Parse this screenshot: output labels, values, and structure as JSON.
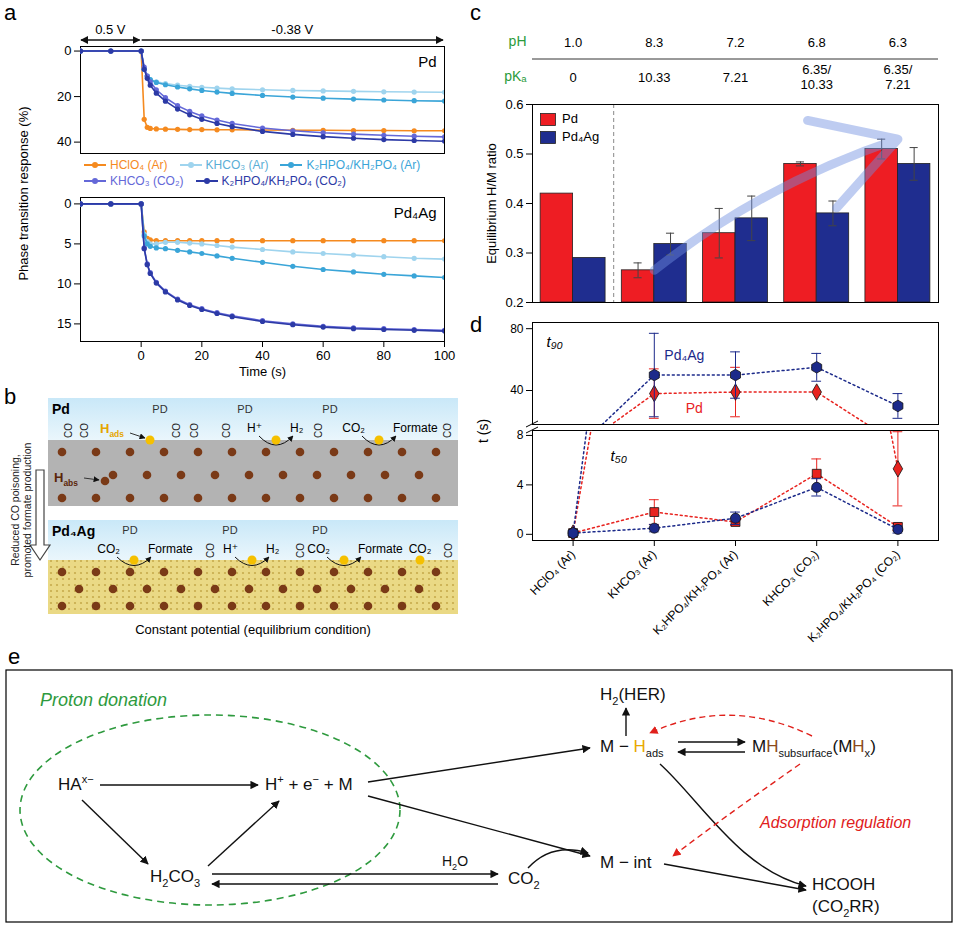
{
  "chart_data": [
    {
      "panel": "a",
      "type": "line",
      "xlabel": "Time (s)",
      "ylabel": "Phase transition response (%)",
      "xlim": [
        -20,
        100
      ],
      "xticks": [
        0,
        20,
        40,
        60,
        80,
        100
      ],
      "x": [
        -20,
        -10,
        0,
        1,
        2,
        3,
        5,
        8,
        12,
        16,
        20,
        25,
        30,
        40,
        50,
        60,
        70,
        80,
        90,
        100
      ],
      "marker": "circle",
      "legend": "middle",
      "potential_steps": [
        {
          "label": "0.5 V",
          "from": -20,
          "to": 0
        },
        {
          "label": "-0.38 V",
          "from": 0,
          "to": 100
        }
      ],
      "panels": [
        {
          "title": "Pd",
          "ylim": [
            45,
            -2
          ],
          "yticks": [
            0,
            20,
            40
          ],
          "series": [
            {
              "name": "HClO₄ (Ar)",
              "color": "#f58a1f",
              "values": [
                0,
                0,
                0,
                30,
                33.5,
                34,
                34.2,
                34.3,
                34.4,
                34.5,
                34.5,
                34.6,
                34.6,
                34.7,
                34.8,
                34.8,
                34.9,
                34.9,
                35,
                35
              ]
            },
            {
              "name": "KHCO₃ (Ar)",
              "color": "#9fd4ee",
              "values": [
                0,
                0,
                0,
                8,
                11,
                12.5,
                13.5,
                14.3,
                15,
                15.5,
                15.9,
                16.3,
                16.6,
                17,
                17.3,
                17.5,
                17.7,
                17.9,
                18,
                18.1
              ]
            },
            {
              "name": "K₂HPO₄/KH₂PO₄ (Ar)",
              "color": "#3aa5d8",
              "values": [
                0,
                0,
                0,
                8,
                11,
                12.5,
                13.8,
                14.8,
                15.8,
                16.6,
                17.3,
                18,
                18.6,
                19.5,
                20.2,
                20.7,
                21.1,
                21.5,
                21.8,
                22
              ]
            },
            {
              "name": "KHCO₃ (CO₂)",
              "color": "#6468d8",
              "values": [
                0,
                0,
                0,
                7,
                11,
                13.5,
                17,
                20.5,
                24,
                26.5,
                28.5,
                30.3,
                31.8,
                33.8,
                35,
                35.9,
                36.5,
                37,
                37.4,
                37.7
              ]
            },
            {
              "name": "K₂HPO₄/KH₂PO₄ (CO₂)",
              "color": "#2c3aa6",
              "values": [
                0,
                0,
                0,
                8,
                12,
                15,
                18.5,
                22,
                25.5,
                28,
                30,
                31.8,
                33.2,
                35.3,
                36.6,
                37.6,
                38.3,
                38.9,
                39.3,
                39.6
              ]
            }
          ]
        },
        {
          "title": "Pd₄Ag",
          "ylim": [
            17.2,
            -0.8
          ],
          "yticks": [
            0,
            5,
            10,
            15
          ],
          "series": [
            {
              "name": "HClO₄ (Ar)",
              "color": "#f58a1f",
              "values": [
                0,
                0,
                0,
                3.5,
                4.3,
                4.5,
                4.6,
                4.6,
                4.6,
                4.6,
                4.6,
                4.6,
                4.6,
                4.6,
                4.6,
                4.6,
                4.6,
                4.6,
                4.6,
                4.6
              ]
            },
            {
              "name": "KHCO₃ (Ar)",
              "color": "#9fd4ee",
              "values": [
                0,
                0,
                0,
                3.8,
                4.7,
                5.0,
                5.0,
                4.8,
                4.8,
                4.9,
                5.0,
                5.2,
                5.4,
                5.7,
                6.0,
                6.2,
                6.4,
                6.6,
                6.8,
                6.9
              ]
            },
            {
              "name": "K₂HPO₄/KH₂PO₄ (Ar)",
              "color": "#3aa5d8",
              "values": [
                0,
                0,
                0,
                4.0,
                5.0,
                5.3,
                5.5,
                5.6,
                5.8,
                6.0,
                6.2,
                6.5,
                6.8,
                7.3,
                7.8,
                8.2,
                8.5,
                8.8,
                9.0,
                9.2
              ]
            },
            {
              "name": "KHCO₃ (CO₂)",
              "color": "#6468d8",
              "values": [
                0,
                0,
                0,
                5.5,
                7.5,
                8.6,
                9.8,
                10.9,
                11.9,
                12.6,
                13.1,
                13.6,
                14.0,
                14.6,
                15.0,
                15.3,
                15.5,
                15.6,
                15.7,
                15.8
              ]
            },
            {
              "name": "K₂HPO₄/KH₂PO₄ (CO₂)",
              "color": "#2c3aa6",
              "values": [
                0,
                0,
                0,
                5.6,
                7.6,
                8.7,
                9.9,
                11.0,
                12.0,
                12.7,
                13.2,
                13.7,
                14.1,
                14.7,
                15.1,
                15.4,
                15.6,
                15.7,
                15.8,
                15.9
              ]
            }
          ]
        }
      ]
    },
    {
      "panel": "c",
      "type": "bar",
      "ylabel": "Equilibrium H/M ratio",
      "categories": [
        "HClO₄ (Ar)",
        "KHCO₃ (Ar)",
        "K₂HPO₄/KH₂PO₄ (Ar)",
        "KHCO₃ (CO₂)",
        "K₂HPO₄/KH₂PO₄ (CO₂)"
      ],
      "ylim": [
        0.2,
        0.6
      ],
      "yticks": [
        0.2,
        0.3,
        0.4,
        0.5,
        0.6
      ],
      "tick_labels": "y",
      "legend": "top-left",
      "header_rows": [
        {
          "label": "pH",
          "values": [
            "1.0",
            "8.3",
            "7.2",
            "6.8",
            "6.3"
          ]
        },
        {
          "label": "pKₐ",
          "values": [
            "0",
            "10.33",
            "7.21",
            "6.35/10.33",
            "6.35/7.21"
          ]
        }
      ],
      "series": [
        {
          "name": "Pd",
          "color": "#ee1d23",
          "values": [
            0.42,
            0.265,
            0.34,
            0.48,
            0.51
          ],
          "errors": [
            null,
            0.015,
            0.05,
            0.004,
            0.02
          ]
        },
        {
          "name": "Pd₄Ag",
          "color": "#1f2d8f",
          "values": [
            0.29,
            0.318,
            0.37,
            0.38,
            0.48
          ],
          "errors": [
            null,
            0.022,
            0.045,
            0.025,
            0.033
          ]
        }
      ]
    },
    {
      "panel": "d",
      "type": "line",
      "ylabel": "t (s)",
      "line_style": "dotted",
      "categories": [
        "HClO₄ (Ar)",
        "KHCO₃ (Ar)",
        "K₂HPO₄/KH₂PO₄ (Ar)",
        "KHCO₃ (CO₂)",
        "K₂HPO₄/KH₂PO₄ (CO₂)"
      ],
      "y_break": {
        "upper": {
          "ylim": [
            18,
            84
          ],
          "yticks": [
            40,
            80
          ]
        },
        "lower": {
          "ylim": [
            -0.5,
            8.4
          ],
          "yticks": [
            0,
            4,
            8
          ]
        }
      },
      "groups": [
        {
          "name": "t₅₀",
          "series": [
            {
              "name": "Pd",
              "color": "#e8231f",
              "marker": "square",
              "values": [
                0.1,
                1.8,
                1.0,
                4.9,
                0.6
              ],
              "errors": [
                null,
                1.0,
                0.3,
                1.2,
                0.3
              ]
            },
            {
              "name": "Pd₄Ag",
              "color": "#1c2a8a",
              "marker": "circle",
              "values": [
                0.1,
                0.5,
                1.3,
                3.8,
                0.4
              ],
              "errors": [
                null,
                0.3,
                0.5,
                0.7,
                0.3
              ]
            }
          ]
        },
        {
          "name": "t₉₀",
          "series": [
            {
              "name": "Pd",
              "color": "#e8231f",
              "marker": "diamond",
              "values": [
                0.1,
                38,
                39,
                39,
                5.3
              ],
              "errors": [
                null,
                16,
                16,
                null,
                3.0
              ]
            },
            {
              "name": "Pd₄Ag",
              "color": "#1c2a8a",
              "marker": "hexagon",
              "values": [
                0.1,
                50,
                50,
                55,
                30
              ],
              "errors": [
                null,
                27,
                15,
                9,
                8
              ]
            }
          ]
        }
      ]
    }
  ],
  "diagrams": [
    {
      "panel": "b",
      "side_note": "Reduced CO poisoning, promoted formate production",
      "caption": "Constant potential (equilibrium condition)",
      "layers": [
        {
          "metal": "Pd",
          "surface_species": "PD",
          "poison": "CO",
          "adsorbed_label": [
            {
              "t": "H"
            },
            {
              "t": "ads",
              "sub": true
            }
          ],
          "absorbed_label": [
            {
              "t": "H"
            },
            {
              "t": "abs",
              "sub": true
            }
          ],
          "reactions": [
            {
              "from": "H⁺",
              "to": "H₂"
            },
            {
              "from": "CO₂",
              "to": "Formate"
            }
          ]
        },
        {
          "metal": "Pd₄Ag",
          "surface_species": "PD",
          "poison": "CO",
          "reactions": [
            {
              "from": "CO₂",
              "to": "Formate"
            },
            {
              "from": "H⁺",
              "to": "H₂"
            },
            {
              "from": "CO₂",
              "to": "Formate"
            }
          ],
          "approaching": "CO₂"
        }
      ]
    },
    {
      "panel": "e",
      "group_label": "Proton donation",
      "regulation_label": "Adsorption regulation",
      "nodes": {
        "acid": [
          {
            "t": "HA"
          },
          {
            "t": "x−",
            "sup": true
          }
        ],
        "proton": [
          {
            "t": "H"
          },
          {
            "t": "+",
            "sup": true
          },
          {
            "t": " + e"
          },
          {
            "t": "−",
            "sup": true
          },
          {
            "t": " + M"
          }
        ],
        "carbonic": [
          {
            "t": "H"
          },
          {
            "t": "2",
            "sub": true
          },
          {
            "t": "CO"
          },
          {
            "t": "3",
            "sub": true
          }
        ],
        "water": [
          {
            "t": "H"
          },
          {
            "t": "2",
            "sub": true
          },
          {
            "t": "O"
          }
        ],
        "co2": [
          {
            "t": "CO"
          },
          {
            "t": "2",
            "sub": true
          }
        ],
        "h_ads": [
          {
            "t": "M − "
          },
          {
            "t": "H",
            "color": "#e9a900"
          },
          {
            "t": "ads",
            "sub": true
          }
        ],
        "her": [
          {
            "t": "H"
          },
          {
            "t": "2",
            "sub": true
          },
          {
            "t": "(HER)"
          }
        ],
        "subsurface": [
          {
            "t": "M"
          },
          {
            "t": "H",
            "color": "#8a4a1c"
          },
          {
            "t": "subsurface",
            "sub": true
          },
          {
            "t": "(M"
          },
          {
            "t": "H",
            "color": "#8a4a1c"
          },
          {
            "t": "x",
            "sub": true
          },
          {
            "t": ")"
          }
        ],
        "intermediate": [
          {
            "t": "M − int"
          }
        ],
        "product": [
          [
            {
              "t": "HCOOH"
            }
          ],
          [
            {
              "t": "(CO"
            },
            {
              "t": "2",
              "sub": true
            },
            {
              "t": "RR)"
            }
          ]
        ]
      }
    }
  ]
}
